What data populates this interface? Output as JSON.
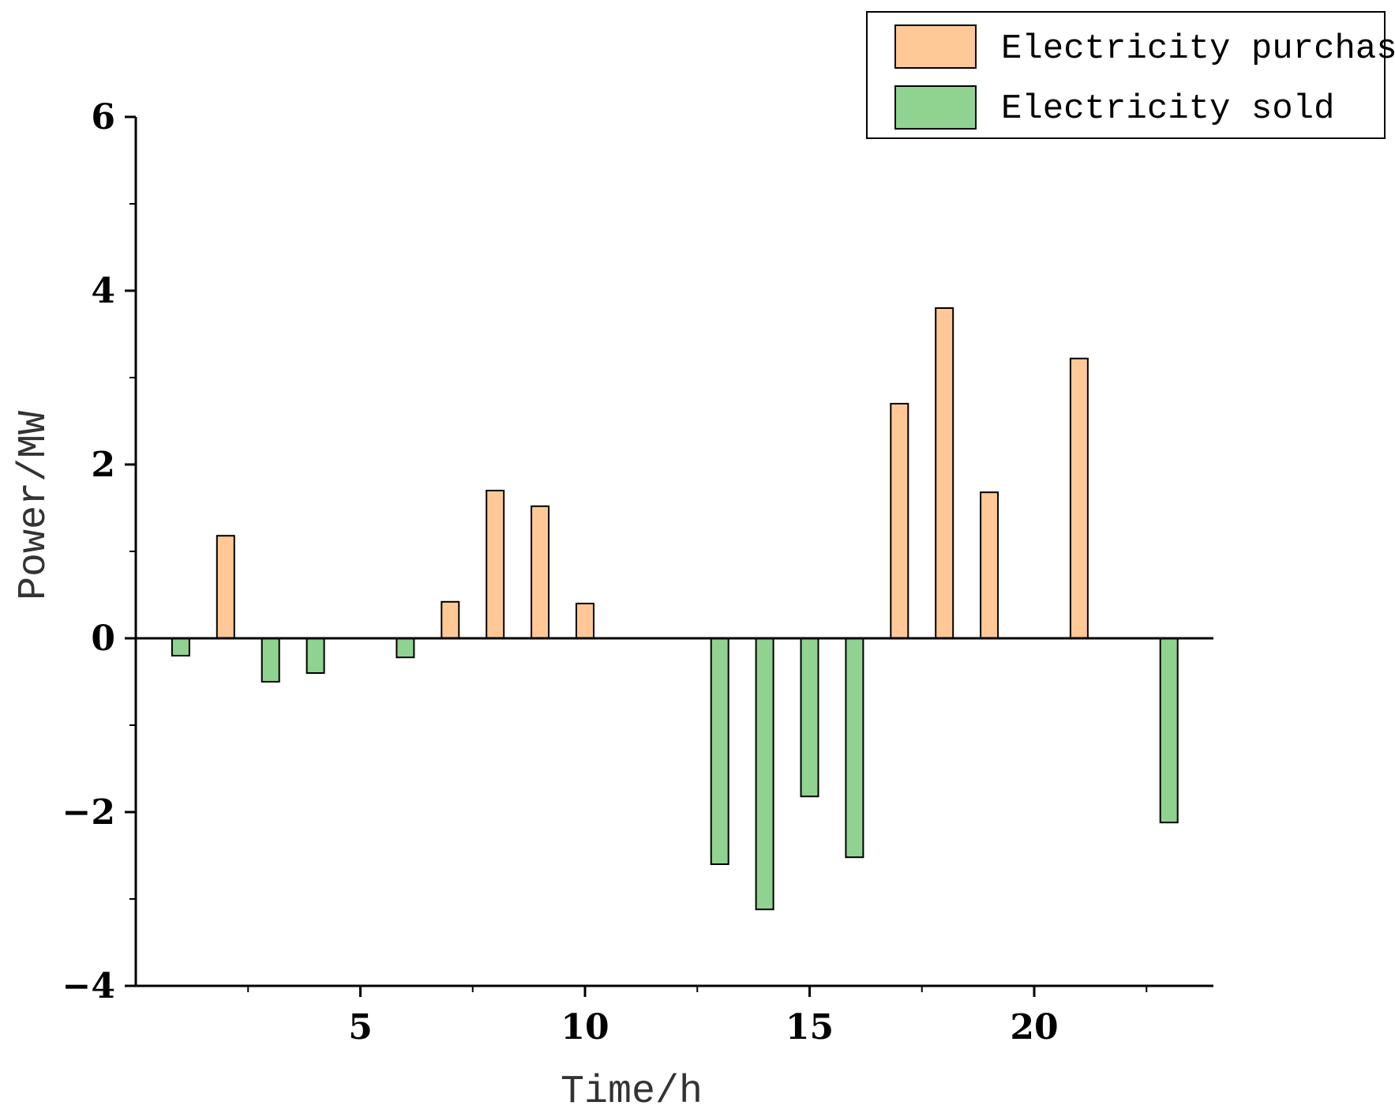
{
  "chart_data": {
    "type": "bar",
    "title": "",
    "xlabel": "Time/h",
    "ylabel": "Power/MW",
    "xlim": [
      0,
      24
    ],
    "ylim": [
      -4,
      6
    ],
    "x_ticks": [
      5,
      10,
      15,
      20
    ],
    "x_minor_ticks": [
      2.5,
      7.5,
      12.5,
      17.5,
      22.5
    ],
    "y_ticks": [
      -4,
      -2,
      0,
      2,
      4,
      6
    ],
    "y_minor_ticks": [
      -3,
      -1,
      1,
      3,
      5
    ],
    "grid": false,
    "legend_position": "top-right",
    "series": [
      {
        "name": "Electricity purchased",
        "color": "#FFC896",
        "hours": [
          2,
          7,
          8,
          9,
          10,
          17,
          18,
          19,
          21
        ],
        "values": [
          1.18,
          0.42,
          1.7,
          1.52,
          0.4,
          2.7,
          3.8,
          1.68,
          3.22
        ]
      },
      {
        "name": "Electricity sold",
        "color": "#90D290",
        "hours": [
          1,
          3,
          4,
          6,
          13,
          14,
          15,
          16,
          23
        ],
        "values": [
          -0.2,
          -0.5,
          -0.4,
          -0.22,
          -2.6,
          -3.12,
          -1.82,
          -2.52,
          -2.12
        ]
      }
    ]
  }
}
